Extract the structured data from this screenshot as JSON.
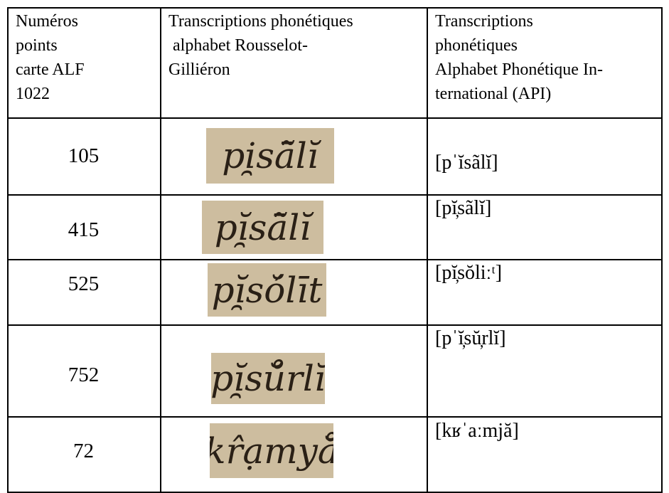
{
  "table": {
    "header": [
      [
        "Numéros",
        "points",
        "carte ALF",
        "1022"
      ],
      [
        "Transcriptions phonétiques",
        " alphabet Rousselot-",
        "Gilliéron"
      ],
      [
        "Transcriptions",
        "phonétiques",
        "Alphabet Phonétique In-",
        "ternational (API)"
      ]
    ],
    "rows": [
      {
        "number": "105",
        "rousselot": "pi̯sā̃lĭ",
        "api": "[pˈĭsãlĭ]"
      },
      {
        "number": "415",
        "rousselot": "pĭ̯sā̃lĭ",
        "api": "[pĭ̦sãlĭ]"
      },
      {
        "number": "525",
        "rousselot": "pĭ̯sŏ́līt",
        "api": "[pĭ̦sŏliːᵗ]"
      },
      {
        "number": "752",
        "rousselot": "pĭ̯sŭ̊rlĭ",
        "api": "[pˈĭ̦sŭ̦rlĭ]"
      },
      {
        "number": "72",
        "rousselot": "kr̂ạmyă̊",
        "api": "[kʁˈaːmjă]"
      }
    ]
  }
}
